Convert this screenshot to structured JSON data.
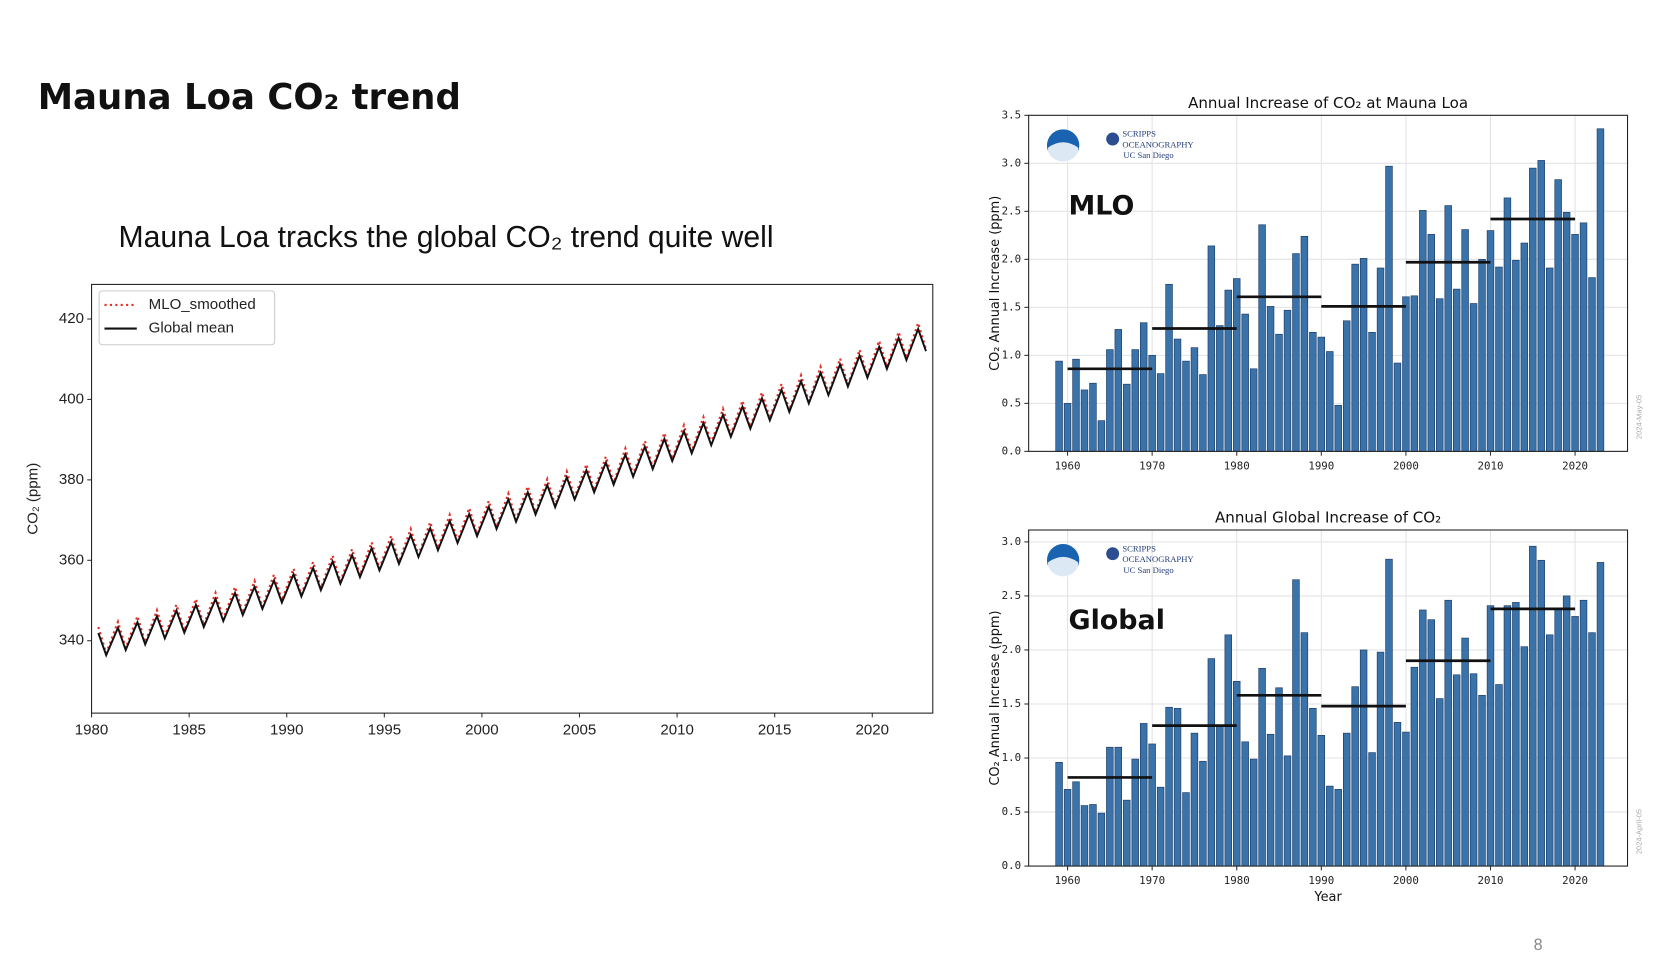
{
  "slide": {
    "title": "Mauna Loa CO₂ trend",
    "subtitle": "Mauna Loa tracks the global CO₂ trend quite well",
    "page_number": "8"
  },
  "chart_data": [
    {
      "type": "line",
      "ylabel": "CO₂ (ppm)",
      "xlim": [
        1980,
        2023.1
      ],
      "ylim": [
        322,
        428.6
      ],
      "xticks": [
        1980,
        1985,
        1990,
        1995,
        2000,
        2005,
        2010,
        2015,
        2020
      ],
      "yticks": [
        340,
        360,
        380,
        400,
        420
      ],
      "grid": false,
      "legend": "upper left",
      "x": [
        1980.35,
        1980.75,
        1981.35,
        1981.75,
        1982.35,
        1982.75,
        1983.35,
        1983.75,
        1984.35,
        1984.75,
        1985.35,
        1985.75,
        1986.35,
        1986.75,
        1987.35,
        1987.75,
        1988.35,
        1988.75,
        1989.35,
        1989.75,
        1990.35,
        1990.75,
        1991.35,
        1991.75,
        1992.35,
        1992.75,
        1993.35,
        1993.75,
        1994.35,
        1994.75,
        1995.35,
        1995.75,
        1996.35,
        1996.75,
        1997.35,
        1997.75,
        1998.35,
        1998.75,
        1999.35,
        1999.75,
        2000.35,
        2000.75,
        2001.35,
        2001.75,
        2002.35,
        2002.75,
        2003.35,
        2003.75,
        2004.35,
        2004.75,
        2005.35,
        2005.75,
        2006.35,
        2006.75,
        2007.35,
        2007.75,
        2008.35,
        2008.75,
        2009.35,
        2009.75,
        2010.35,
        2010.75,
        2011.35,
        2011.75,
        2012.35,
        2012.75,
        2013.35,
        2013.75,
        2014.35,
        2014.75,
        2015.35,
        2015.75,
        2016.35,
        2016.75,
        2017.35,
        2017.75,
        2018.35,
        2018.75,
        2019.35,
        2019.75,
        2020.35,
        2020.75,
        2021.35,
        2021.75,
        2022.35,
        2022.75
      ],
      "series": [
        {
          "name": "MLO_smoothed",
          "color": "#e8312a",
          "dash": "dotted",
          "values": [
            343.4,
            336.9,
            344.7,
            338.2,
            346.1,
            339.6,
            347.6,
            341.1,
            349.0,
            342.5,
            350.4,
            343.9,
            351.9,
            345.4,
            353.4,
            346.9,
            354.9,
            348.4,
            356.5,
            350.0,
            358.0,
            351.5,
            359.6,
            353.1,
            361.2,
            354.7,
            362.8,
            356.3,
            364.5,
            358.0,
            366.1,
            359.6,
            367.8,
            361.3,
            369.5,
            363.0,
            371.3,
            364.8,
            373.0,
            366.5,
            374.8,
            368.3,
            376.6,
            370.1,
            378.4,
            371.9,
            380.2,
            373.7,
            382.1,
            375.6,
            383.9,
            377.4,
            385.8,
            379.3,
            387.8,
            381.3,
            389.7,
            383.2,
            391.7,
            385.2,
            393.6,
            387.1,
            395.6,
            389.1,
            397.7,
            391.2,
            399.7,
            393.2,
            401.8,
            395.3,
            403.9,
            397.4,
            406.0,
            399.5,
            408.1,
            401.6,
            410.2,
            403.7,
            412.4,
            405.9,
            414.6,
            408.1,
            416.8,
            410.3,
            419.0,
            412.5
          ]
        },
        {
          "name": "Global mean",
          "color": "#111111",
          "dash": "solid",
          "values": [
            341.9,
            336.4,
            343.2,
            337.7,
            344.6,
            339.1,
            346.1,
            340.6,
            347.5,
            342.0,
            348.9,
            343.4,
            350.4,
            344.9,
            351.9,
            346.4,
            353.4,
            347.9,
            355.0,
            349.5,
            356.5,
            351.0,
            358.1,
            352.6,
            359.7,
            354.2,
            361.3,
            355.8,
            363.0,
            357.5,
            364.6,
            359.1,
            366.3,
            360.8,
            368.0,
            362.5,
            369.8,
            364.3,
            371.5,
            366.0,
            373.3,
            367.8,
            375.1,
            369.6,
            376.9,
            371.4,
            378.7,
            373.2,
            380.6,
            375.1,
            382.4,
            376.9,
            384.3,
            378.8,
            386.3,
            380.8,
            388.2,
            382.7,
            390.2,
            384.7,
            392.1,
            386.6,
            394.1,
            388.6,
            396.2,
            390.7,
            398.2,
            392.7,
            400.3,
            394.8,
            402.4,
            396.9,
            404.5,
            399.0,
            406.6,
            401.1,
            408.7,
            403.2,
            410.9,
            405.4,
            413.1,
            407.6,
            415.3,
            409.8,
            417.5,
            412.0
          ]
        }
      ]
    },
    {
      "type": "bar",
      "title": "Annual Increase of CO₂ at Mauna Loa",
      "ylabel": "CO₂ Annual Increase (ppm)",
      "annotation": "MLO",
      "color": "#3a72aa",
      "grid": true,
      "logos": [
        "SCRIPPS",
        "OCEANOGRAPHY",
        "UC San Diego"
      ],
      "stamp": "2024-May-05",
      "xlim": [
        1955.4,
        2026.2
      ],
      "ylim": [
        0,
        3.5
      ],
      "xticks": [
        1960,
        1970,
        1980,
        1990,
        2000,
        2010,
        2020
      ],
      "yticks": [
        {
          "value": 0,
          "label": "0.0"
        },
        {
          "value": 0.5,
          "label": "0.5"
        },
        {
          "value": 1,
          "label": "1.0"
        },
        {
          "value": 1.5,
          "label": "1.5"
        },
        {
          "value": 2,
          "label": "2.0"
        },
        {
          "value": 2.5,
          "label": "2.5"
        },
        {
          "value": 3,
          "label": "3.0"
        },
        {
          "value": 3.5,
          "label": "3.5"
        }
      ],
      "x": [
        1959,
        1960,
        1961,
        1962,
        1963,
        1964,
        1965,
        1966,
        1967,
        1968,
        1969,
        1970,
        1971,
        1972,
        1973,
        1974,
        1975,
        1976,
        1977,
        1978,
        1979,
        1980,
        1981,
        1982,
        1983,
        1984,
        1985,
        1986,
        1987,
        1988,
        1989,
        1990,
        1991,
        1992,
        1993,
        1994,
        1995,
        1996,
        1997,
        1998,
        1999,
        2000,
        2001,
        2002,
        2003,
        2004,
        2005,
        2006,
        2007,
        2008,
        2009,
        2010,
        2011,
        2012,
        2013,
        2014,
        2015,
        2016,
        2017,
        2018,
        2019,
        2020,
        2021,
        2022,
        2023
      ],
      "values": [
        0.94,
        0.5,
        0.96,
        0.64,
        0.71,
        0.32,
        1.06,
        1.27,
        0.7,
        1.06,
        1.34,
        1.0,
        0.81,
        1.74,
        1.17,
        0.94,
        1.08,
        0.8,
        2.14,
        1.31,
        1.68,
        1.8,
        1.43,
        0.86,
        2.36,
        1.51,
        1.22,
        1.47,
        2.06,
        2.24,
        1.24,
        1.19,
        1.04,
        0.48,
        1.36,
        1.95,
        2.01,
        1.24,
        1.91,
        2.97,
        0.92,
        1.61,
        1.62,
        2.51,
        2.26,
        1.59,
        2.56,
        1.69,
        2.31,
        1.54,
        2.0,
        2.3,
        1.92,
        2.64,
        1.99,
        2.17,
        2.95,
        3.03,
        1.91,
        2.83,
        2.49,
        2.26,
        2.38,
        1.81,
        3.36
      ],
      "decadal_means": {
        "starts": [
          1960,
          1970,
          1980,
          1990,
          2000,
          2010
        ],
        "ends": [
          1970,
          1980,
          1990,
          2000,
          2010,
          2020
        ],
        "values": [
          0.86,
          1.28,
          1.61,
          1.51,
          1.97,
          2.42
        ]
      }
    },
    {
      "type": "bar",
      "title": "Annual Global Increase of CO₂",
      "ylabel": "CO₂ Annual Increase (ppm)",
      "xlabel": "Year",
      "annotation": "Global",
      "color": "#3a72aa",
      "grid": true,
      "logos": [
        "SCRIPPS",
        "OCEANOGRAPHY",
        "UC San Diego"
      ],
      "stamp": "2024-April-05",
      "xlim": [
        1955.4,
        2026.2
      ],
      "ylim": [
        0,
        3.11
      ],
      "xticks": [
        1960,
        1970,
        1980,
        1990,
        2000,
        2010,
        2020
      ],
      "yticks": [
        {
          "value": 0,
          "label": "0.0"
        },
        {
          "value": 0.5,
          "label": "0.5"
        },
        {
          "value": 1,
          "label": "1.0"
        },
        {
          "value": 1.5,
          "label": "1.5"
        },
        {
          "value": 2,
          "label": "2.0"
        },
        {
          "value": 2.5,
          "label": "2.5"
        },
        {
          "value": 3,
          "label": "3.0"
        }
      ],
      "x": [
        1959,
        1960,
        1961,
        1962,
        1963,
        1964,
        1965,
        1966,
        1967,
        1968,
        1969,
        1970,
        1971,
        1972,
        1973,
        1974,
        1975,
        1976,
        1977,
        1978,
        1979,
        1980,
        1981,
        1982,
        1983,
        1984,
        1985,
        1986,
        1987,
        1988,
        1989,
        1990,
        1991,
        1992,
        1993,
        1994,
        1995,
        1996,
        1997,
        1998,
        1999,
        2000,
        2001,
        2002,
        2003,
        2004,
        2005,
        2006,
        2007,
        2008,
        2009,
        2010,
        2011,
        2012,
        2013,
        2014,
        2015,
        2016,
        2017,
        2018,
        2019,
        2020,
        2021,
        2022,
        2023
      ],
      "values": [
        0.96,
        0.71,
        0.78,
        0.56,
        0.57,
        0.49,
        1.1,
        1.1,
        0.61,
        0.99,
        1.32,
        1.13,
        0.73,
        1.47,
        1.46,
        0.68,
        1.23,
        0.97,
        1.92,
        1.29,
        2.14,
        1.71,
        1.15,
        0.99,
        1.83,
        1.22,
        1.65,
        1.02,
        2.65,
        2.16,
        1.46,
        1.21,
        0.74,
        0.71,
        1.23,
        1.66,
        2.0,
        1.05,
        1.98,
        2.84,
        1.33,
        1.24,
        1.84,
        2.37,
        2.28,
        1.55,
        2.46,
        1.77,
        2.11,
        1.78,
        1.58,
        2.41,
        1.68,
        2.41,
        2.44,
        2.03,
        2.96,
        2.83,
        2.14,
        2.38,
        2.5,
        2.31,
        2.46,
        2.16,
        2.81
      ],
      "decadal_means": {
        "starts": [
          1960,
          1970,
          1980,
          1990,
          2000,
          2010
        ],
        "ends": [
          1970,
          1980,
          1990,
          2000,
          2010,
          2020
        ],
        "values": [
          0.82,
          1.3,
          1.58,
          1.48,
          1.9,
          2.38
        ]
      }
    }
  ]
}
